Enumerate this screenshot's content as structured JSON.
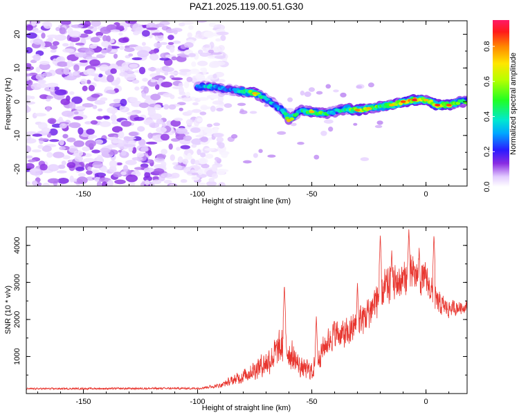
{
  "title": "PAZ1.2025.119.00.51.G30",
  "chart_data": [
    {
      "type": "heatmap",
      "xlabel": "Height of straight line (km)",
      "ylabel": "Frequency (Hz)",
      "xlim": [
        -175,
        18
      ],
      "ylim": [
        -25,
        24
      ],
      "xticks": [
        -150,
        -100,
        -50,
        0
      ],
      "yticks": [
        -20,
        -10,
        0,
        10,
        20
      ],
      "colorbar": {
        "label": "Normalized spectral amplitude",
        "range": [
          0,
          0.95
        ],
        "ticks": [
          0.0,
          0.2,
          0.4,
          0.6,
          0.8
        ]
      },
      "ridge": {
        "description_free": true,
        "points": [
          {
            "x": -100,
            "y": 4.5,
            "a": 0.28
          },
          {
            "x": -95,
            "y": 4.5,
            "a": 0.35
          },
          {
            "x": -90,
            "y": 4.0,
            "a": 0.3
          },
          {
            "x": -85,
            "y": 3.5,
            "a": 0.25
          },
          {
            "x": -80,
            "y": 3.0,
            "a": 0.45
          },
          {
            "x": -75,
            "y": 2.5,
            "a": 0.55
          },
          {
            "x": -70,
            "y": 1.0,
            "a": 0.35
          },
          {
            "x": -65,
            "y": -1.5,
            "a": 0.3
          },
          {
            "x": -62,
            "y": -3.0,
            "a": 0.4
          },
          {
            "x": -60,
            "y": -5.5,
            "a": 0.55
          },
          {
            "x": -55,
            "y": -2.5,
            "a": 0.35
          },
          {
            "x": -50,
            "y": -3.0,
            "a": 0.55
          },
          {
            "x": -45,
            "y": -3.5,
            "a": 0.45
          },
          {
            "x": -40,
            "y": -3.0,
            "a": 0.35
          },
          {
            "x": -35,
            "y": -2.0,
            "a": 0.45
          },
          {
            "x": -30,
            "y": -2.5,
            "a": 0.6
          },
          {
            "x": -25,
            "y": -2.0,
            "a": 0.55
          },
          {
            "x": -20,
            "y": -1.5,
            "a": 0.45
          },
          {
            "x": -15,
            "y": -1.0,
            "a": 0.55
          },
          {
            "x": -10,
            "y": 0.0,
            "a": 0.65
          },
          {
            "x": -5,
            "y": 0.5,
            "a": 0.7
          },
          {
            "x": 0,
            "y": 0.5,
            "a": 0.55
          },
          {
            "x": 5,
            "y": -1.0,
            "a": 0.7
          },
          {
            "x": 10,
            "y": -1.0,
            "a": 0.65
          },
          {
            "x": 15,
            "y": 0.0,
            "a": 0.45
          }
        ]
      }
    },
    {
      "type": "line",
      "xlabel": "Height of straight line (km)",
      "ylabel": "SNR (10 * v/v)",
      "xlim": [
        -175,
        18
      ],
      "ylim": [
        0,
        4500
      ],
      "xticks": [
        -150,
        -100,
        -50,
        0
      ],
      "yticks": [
        1000,
        2000,
        3000,
        4000
      ],
      "color": "#e8352e",
      "envelope": [
        {
          "x": -175,
          "base": 120,
          "amp": 60
        },
        {
          "x": -100,
          "base": 130,
          "amp": 70
        },
        {
          "x": -90,
          "base": 200,
          "amp": 150
        },
        {
          "x": -80,
          "base": 400,
          "amp": 500
        },
        {
          "x": -70,
          "base": 700,
          "amp": 900
        },
        {
          "x": -62,
          "base": 1100,
          "amp": 1400
        },
        {
          "x": -55,
          "base": 600,
          "amp": 700
        },
        {
          "x": -50,
          "base": 500,
          "amp": 700
        },
        {
          "x": -45,
          "base": 1100,
          "amp": 900
        },
        {
          "x": -40,
          "base": 1500,
          "amp": 1000
        },
        {
          "x": -35,
          "base": 1400,
          "amp": 1100
        },
        {
          "x": -30,
          "base": 1700,
          "amp": 1200
        },
        {
          "x": -25,
          "base": 2000,
          "amp": 1300
        },
        {
          "x": -20,
          "base": 2500,
          "amp": 1500
        },
        {
          "x": -10,
          "base": 2900,
          "amp": 1300
        },
        {
          "x": -5,
          "base": 3000,
          "amp": 1400
        },
        {
          "x": 0,
          "base": 2900,
          "amp": 1100
        },
        {
          "x": 5,
          "base": 2300,
          "amp": 900
        },
        {
          "x": 10,
          "base": 2200,
          "amp": 600
        },
        {
          "x": 18,
          "base": 2300,
          "amp": 400
        }
      ],
      "peaks": [
        {
          "x": -62,
          "y": 2950
        },
        {
          "x": -48,
          "y": 2100
        },
        {
          "x": -30,
          "y": 3000
        },
        {
          "x": -20,
          "y": 4300
        },
        {
          "x": -7.5,
          "y": 4450
        },
        {
          "x": -3,
          "y": 3950
        },
        {
          "x": 3.5,
          "y": 4300
        },
        {
          "x": -15,
          "y": 3900
        }
      ]
    }
  ]
}
